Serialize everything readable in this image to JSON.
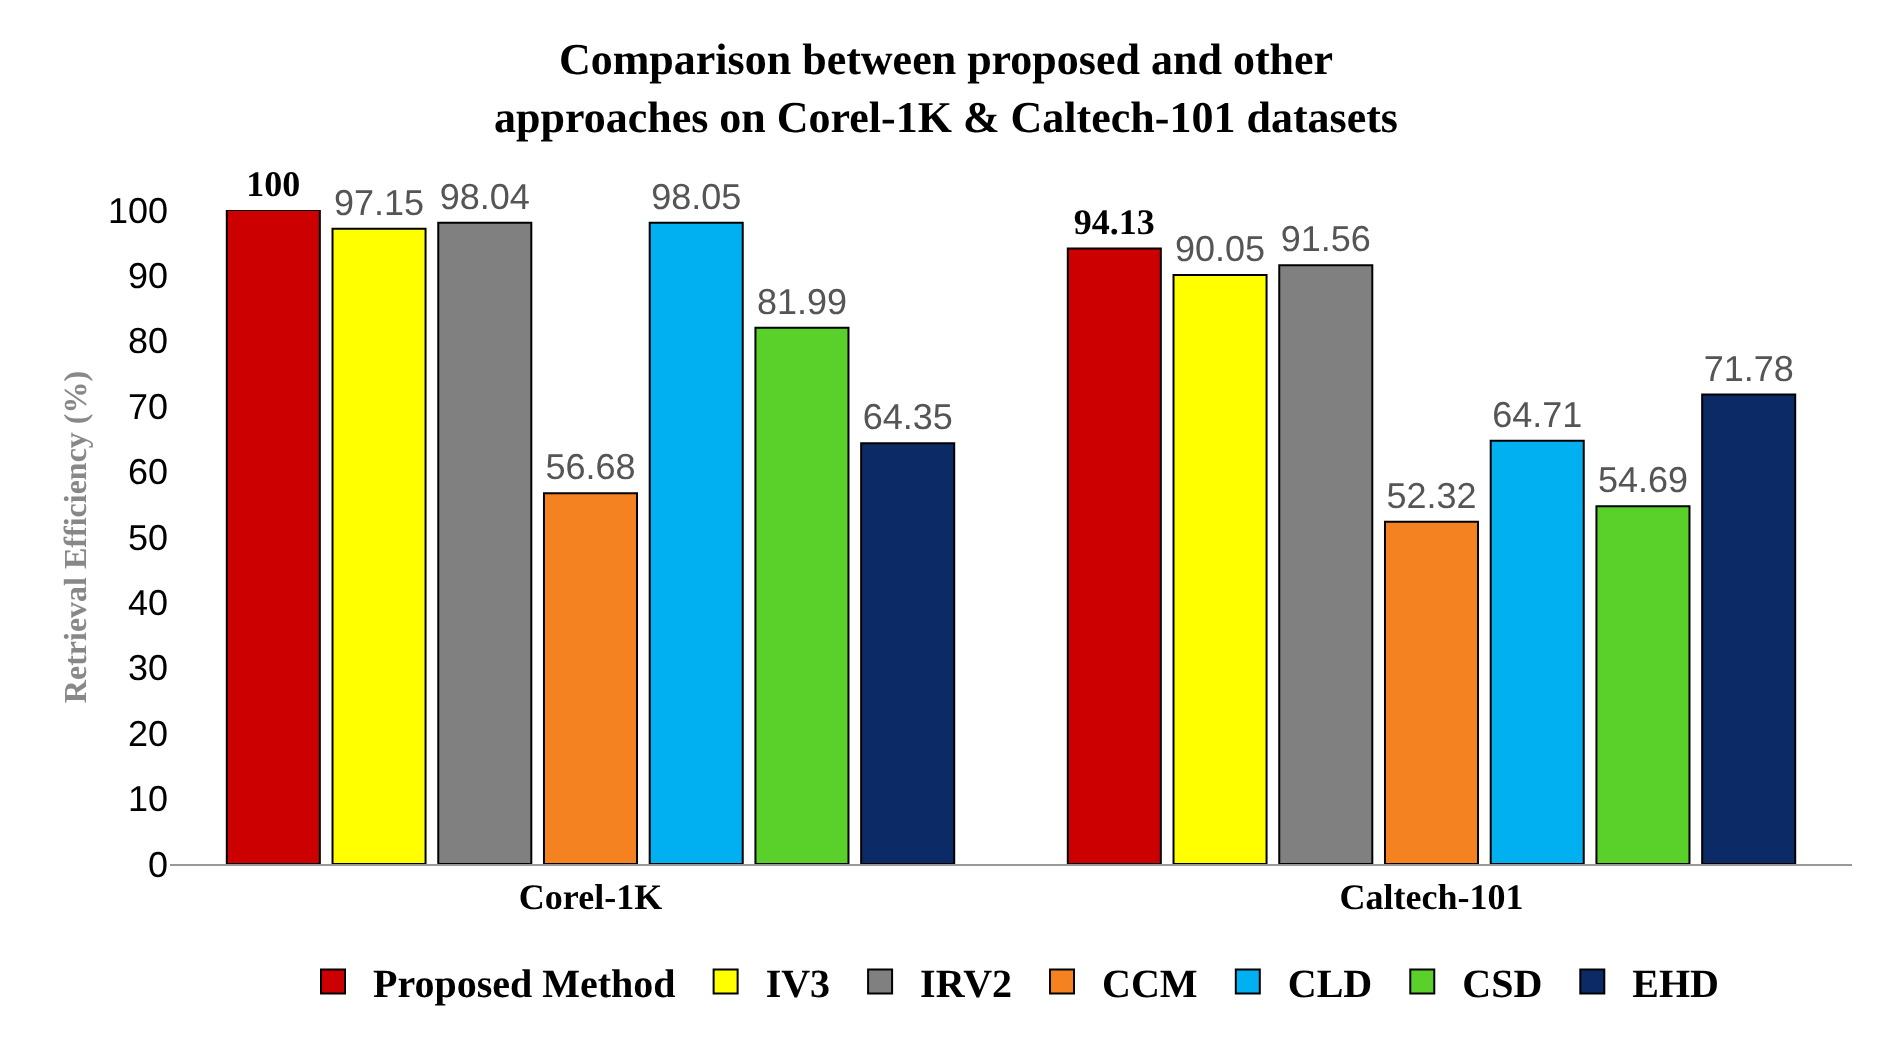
{
  "chart_data": {
    "type": "bar",
    "title": "Comparison between proposed and other approaches on Corel-1K & Caltech-101 datasets",
    "ylabel": "Retrieval Efficiency (%)",
    "categories": [
      "Corel-1K",
      "Caltech-101"
    ],
    "series": [
      {
        "name": "Proposed Method",
        "color": "#cc0000",
        "values": [
          100,
          94.13
        ]
      },
      {
        "name": "IV3",
        "color": "#ffff00",
        "values": [
          97.15,
          90.05
        ]
      },
      {
        "name": "IRV2",
        "color": "#808080",
        "values": [
          98.04,
          91.56
        ]
      },
      {
        "name": "CCM",
        "color": "#f58220",
        "values": [
          56.68,
          52.32
        ]
      },
      {
        "name": "CLD",
        "color": "#00b0f0",
        "values": [
          98.05,
          64.71
        ]
      },
      {
        "name": "CSD",
        "color": "#5ad12a",
        "values": [
          81.99,
          54.69
        ]
      },
      {
        "name": "EHD",
        "color": "#0c2a66",
        "values": [
          64.35,
          71.78
        ]
      }
    ],
    "ylim": [
      0,
      100
    ],
    "yticks": [
      0,
      10,
      20,
      30,
      40,
      50,
      60,
      70,
      80,
      90,
      100
    ],
    "data_labels": true,
    "grid": false,
    "legend": "bottom"
  }
}
